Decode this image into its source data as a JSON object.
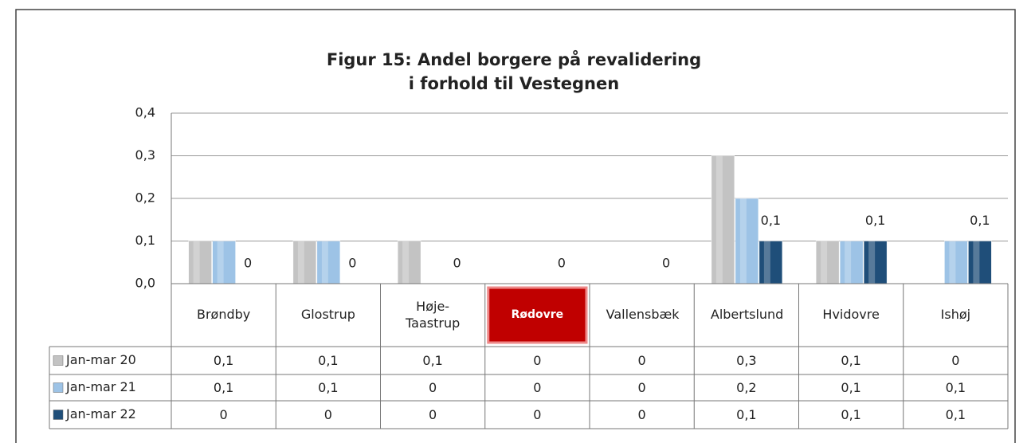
{
  "chart_data": {
    "type": "bar",
    "title": "Figur 15: Andel borgere på revalidering",
    "subtitle": "i forhold til Vestegnen",
    "categories": [
      "Brøndby",
      "Glostrup",
      "Høje-Taastrup",
      "Rødovre",
      "Vallensbæk",
      "Albertslund",
      "Hvidovre",
      "Ishøj"
    ],
    "highlight_category": 3,
    "highlight_color": "#c00000",
    "series": [
      {
        "name": "Jan-mar 20",
        "color": "#c3c3c3",
        "values": [
          0.1,
          0.1,
          0.1,
          0,
          0,
          0.3,
          0.1,
          0
        ],
        "value_labels": [
          "0,1",
          "0,1",
          "0,1",
          "0",
          "0",
          "0,3",
          "0,1",
          "0"
        ]
      },
      {
        "name": "Jan-mar 21",
        "color": "#9dc3e6",
        "values": [
          0.1,
          0.1,
          0,
          0,
          0,
          0.2,
          0.1,
          0.1
        ],
        "value_labels": [
          "0,1",
          "0,1",
          "0",
          "0",
          "0",
          "0,2",
          "0,1",
          "0,1"
        ]
      },
      {
        "name": "Jan-mar 22",
        "color": "#1f4e79",
        "values": [
          0,
          0,
          0,
          0,
          0,
          0.1,
          0.1,
          0.1
        ],
        "value_labels": [
          "0",
          "0",
          "0",
          "0",
          "0",
          "0,1",
          "0,1",
          "0,1"
        ],
        "data_labels": true
      }
    ],
    "ylim": [
      0,
      0.4
    ],
    "yticks": [
      {
        "value": 0,
        "label": "0,0"
      },
      {
        "value": 0.1,
        "label": "0,1"
      },
      {
        "value": 0.2,
        "label": "0,2"
      },
      {
        "value": 0.3,
        "label": "0,3"
      },
      {
        "value": 0.4,
        "label": "0,4"
      }
    ],
    "grid": true,
    "data_table": true
  }
}
